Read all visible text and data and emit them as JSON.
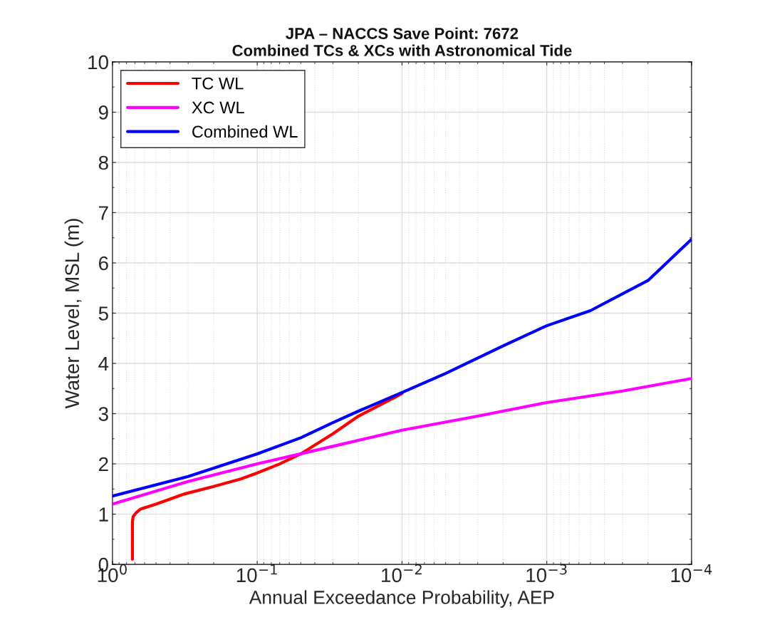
{
  "chart_data": {
    "type": "line",
    "title": "JPA – NACCS Save Point: 7672\nCombined TCs & XCs with Astronomical Tide",
    "xlabel": "Annual Exceedance Probability, AEP",
    "ylabel": "Water Level, MSL (m)",
    "log": "x",
    "xlim": [
      1,
      0.0001
    ],
    "ylim": [
      0,
      10
    ],
    "xticks": [
      {
        "value": 1,
        "label": "10$^{0}$"
      },
      {
        "value": 0.1,
        "label": "10$^{−1}$"
      },
      {
        "value": 0.01,
        "label": "10$^{−2}$"
      },
      {
        "value": 0.001,
        "label": "10$^{−3}$"
      },
      {
        "value": 0.0001,
        "label": "10$^{−4}$"
      }
    ],
    "yticks": [
      0,
      1,
      2,
      3,
      4,
      5,
      6,
      7,
      8,
      9,
      10
    ],
    "grid": true,
    "legend": "top left",
    "marker": "none",
    "line_style": "solid",
    "series": [
      {
        "name": "TC WL",
        "color": "#ff0000",
        "x": [
          0.728,
          0.728,
          0.72,
          0.69,
          0.64,
          0.5,
          0.32,
          0.2,
          0.13,
          0.1,
          0.07,
          0.05,
          0.03,
          0.02,
          0.01
        ],
        "values": [
          0.1,
          0.85,
          0.95,
          1.02,
          1.1,
          1.2,
          1.4,
          1.55,
          1.7,
          1.82,
          2.0,
          2.2,
          2.6,
          2.95,
          3.4
        ]
      },
      {
        "name": "XC WL",
        "color": "#ff00ff",
        "x": [
          1,
          0.3,
          0.1,
          0.03,
          0.01,
          0.003,
          0.001,
          0.0003,
          0.0001
        ],
        "values": [
          1.2,
          1.65,
          2.0,
          2.35,
          2.67,
          2.95,
          3.22,
          3.45,
          3.7
        ]
      },
      {
        "name": "Combined WL",
        "color": "#0000ff",
        "x": [
          1,
          0.3,
          0.1,
          0.05,
          0.03,
          0.02,
          0.01,
          0.005,
          0.002,
          0.001,
          0.0005,
          0.0002,
          0.0001
        ],
        "values": [
          1.36,
          1.75,
          2.2,
          2.52,
          2.82,
          3.05,
          3.42,
          3.8,
          4.35,
          4.75,
          5.05,
          5.65,
          6.47
        ]
      }
    ]
  }
}
